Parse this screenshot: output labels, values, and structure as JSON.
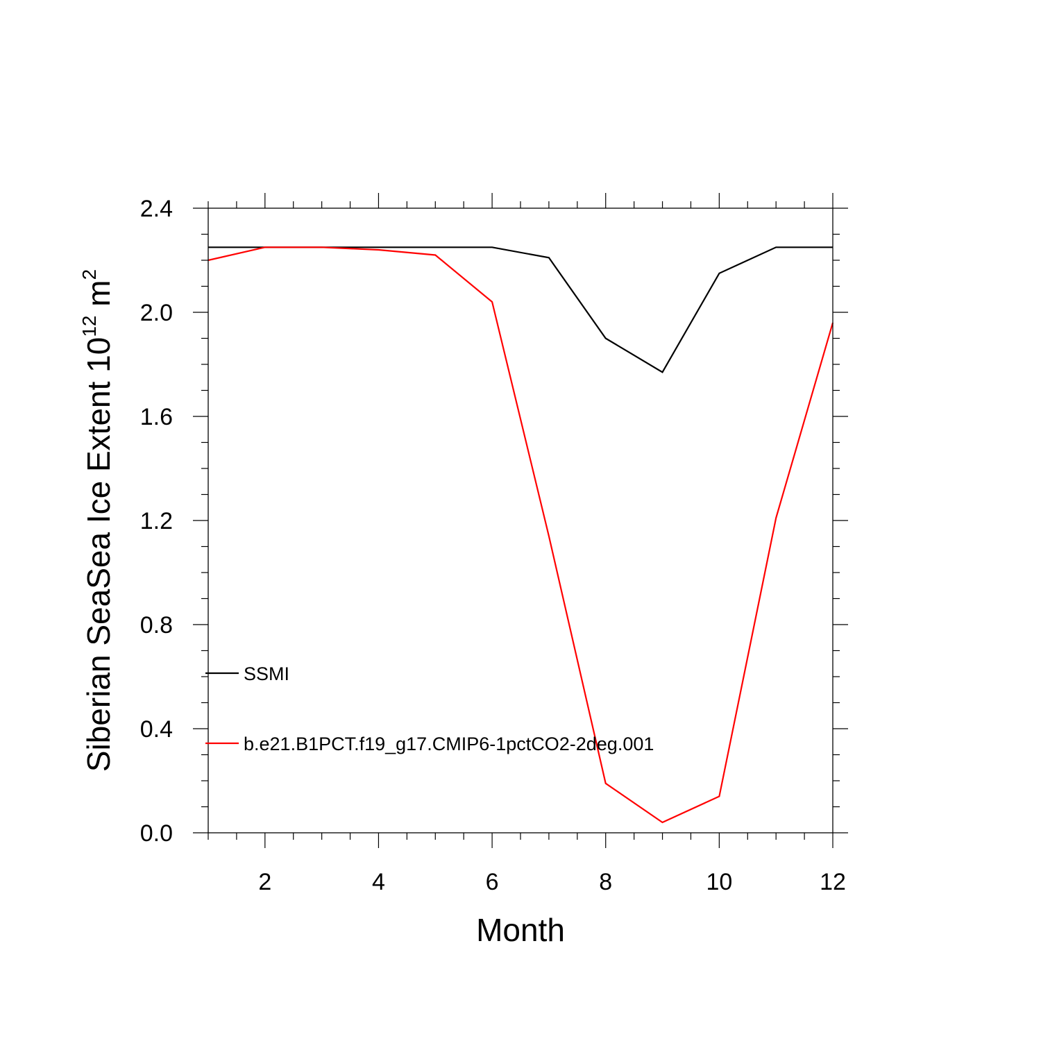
{
  "chart_data": {
    "type": "line",
    "xlabel": "Month",
    "ylabel": "Siberian SeaSea Ice Extent 10",
    "ylabel_exponent": "12",
    "ylabel_unit": " m",
    "ylabel_unit_exponent": "2",
    "xlim": [
      1,
      12
    ],
    "ylim": [
      0,
      2.4
    ],
    "x_ticks": [
      2,
      4,
      6,
      8,
      10,
      12
    ],
    "x_tick_labels": [
      "2",
      "4",
      "6",
      "8",
      "10",
      "12"
    ],
    "y_ticks": [
      0,
      0.4,
      0.8,
      1.2,
      1.6,
      2.0,
      2.4
    ],
    "y_tick_labels": [
      "0.0",
      "0.4",
      "0.8",
      "1.2",
      "1.6",
      "2.0",
      "2.4"
    ],
    "grid": false,
    "legend_placement": "left, lower-middle inside plot",
    "x": [
      1,
      2,
      3,
      4,
      5,
      6,
      7,
      8,
      9,
      10,
      11,
      12
    ],
    "series": [
      {
        "name": "SSMI",
        "color": "#000000",
        "values": [
          2.25,
          2.25,
          2.25,
          2.25,
          2.25,
          2.25,
          2.21,
          1.9,
          1.77,
          2.15,
          2.25,
          2.25
        ]
      },
      {
        "name": "b.e21.B1PCT.f19_g17.CMIP6-1pctCO2-2deg.001",
        "color": "#ff0000",
        "values": [
          2.2,
          2.25,
          2.25,
          2.24,
          2.22,
          2.04,
          1.14,
          0.19,
          0.04,
          0.14,
          1.21,
          1.96
        ]
      }
    ]
  }
}
